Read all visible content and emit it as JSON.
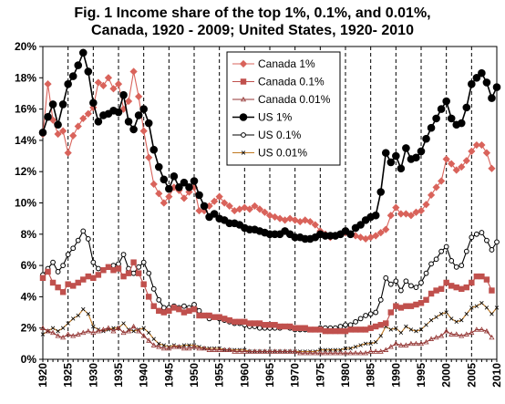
{
  "title_line1": "Fig. 1  Income share of the top 1%, 0.1%, and 0.01%,",
  "title_line2": "Canada, 1920 - 2009; United States, 1920- 2010",
  "chart_data": {
    "type": "line",
    "title": "Fig. 1  Income share of the top 1%, 0.1%, and 0.01%, Canada, 1920 - 2009; United States, 1920- 2010",
    "xlim": [
      1920,
      2010
    ],
    "ylim": [
      0,
      20
    ],
    "x_ticks": [
      1920,
      1925,
      1930,
      1935,
      1940,
      1945,
      1950,
      1955,
      1960,
      1965,
      1970,
      1975,
      1980,
      1985,
      1990,
      1995,
      2000,
      2005,
      2010
    ],
    "y_ticks": [
      0,
      2,
      4,
      6,
      8,
      10,
      12,
      14,
      16,
      18,
      20
    ],
    "y_tick_labels": [
      "0%",
      "2%",
      "4%",
      "6%",
      "8%",
      "10%",
      "12%",
      "14%",
      "16%",
      "18%",
      "20%"
    ],
    "vertical_gridlines": "dashed, every year divisible by 5",
    "legend_position": "upper-center",
    "series": [
      {
        "name": "Canada 1%",
        "color": "#D9635B",
        "marker": "diamond",
        "filled": true,
        "x": [
          1920,
          1921,
          1922,
          1923,
          1924,
          1925,
          1926,
          1927,
          1928,
          1929,
          1930,
          1931,
          1932,
          1933,
          1934,
          1935,
          1936,
          1937,
          1938,
          1939,
          1940,
          1941,
          1942,
          1943,
          1944,
          1945,
          1946,
          1947,
          1948,
          1949,
          1950,
          1951,
          1952,
          1953,
          1954,
          1955,
          1956,
          1957,
          1958,
          1959,
          1960,
          1961,
          1962,
          1963,
          1964,
          1965,
          1966,
          1967,
          1968,
          1969,
          1970,
          1971,
          1972,
          1973,
          1974,
          1975,
          1976,
          1977,
          1978,
          1979,
          1980,
          1981,
          1982,
          1983,
          1984,
          1985,
          1986,
          1987,
          1988,
          1989,
          1990,
          1991,
          1992,
          1993,
          1994,
          1995,
          1996,
          1997,
          1998,
          1999,
          2000,
          2001,
          2002,
          2003,
          2004,
          2005,
          2006,
          2007,
          2008,
          2009
        ],
        "y": [
          14.4,
          17.6,
          15.3,
          14.4,
          14.6,
          13.2,
          14.3,
          14.9,
          15.4,
          15.7,
          16.1,
          17.7,
          17.5,
          18.0,
          17.3,
          17.6,
          16.0,
          16.5,
          18.4,
          16.8,
          14.6,
          12.9,
          11.2,
          10.6,
          10.0,
          10.4,
          11.0,
          10.8,
          10.3,
          10.7,
          11.0,
          9.5,
          9.5,
          9.8,
          10.1,
          10.4,
          10.0,
          9.8,
          9.5,
          9.6,
          9.7,
          9.6,
          9.8,
          9.6,
          9.4,
          9.2,
          9.1,
          9.0,
          8.9,
          9.0,
          8.9,
          8.8,
          8.9,
          8.8,
          8.6,
          8.2,
          8.0,
          7.8,
          7.9,
          8.0,
          8.1,
          8.0,
          7.9,
          7.8,
          7.7,
          7.8,
          7.9,
          8.1,
          8.3,
          9.2,
          9.7,
          9.3,
          9.3,
          9.2,
          9.4,
          9.5,
          9.9,
          10.5,
          11.0,
          11.4,
          12.8,
          12.5,
          12.1,
          12.3,
          12.7,
          13.3,
          13.7,
          13.7,
          13.2,
          12.2
        ]
      },
      {
        "name": "Canada 0.1%",
        "color": "#C0504D",
        "marker": "square",
        "filled": true,
        "x": [
          1920,
          1921,
          1922,
          1923,
          1924,
          1925,
          1926,
          1927,
          1928,
          1929,
          1930,
          1931,
          1932,
          1933,
          1934,
          1935,
          1936,
          1937,
          1938,
          1939,
          1940,
          1941,
          1942,
          1943,
          1944,
          1945,
          1946,
          1947,
          1948,
          1949,
          1950,
          1951,
          1952,
          1953,
          1954,
          1955,
          1956,
          1957,
          1958,
          1959,
          1960,
          1961,
          1962,
          1963,
          1964,
          1965,
          1966,
          1967,
          1968,
          1969,
          1970,
          1971,
          1972,
          1973,
          1974,
          1975,
          1976,
          1977,
          1978,
          1979,
          1980,
          1981,
          1982,
          1983,
          1984,
          1985,
          1986,
          1987,
          1988,
          1989,
          1990,
          1991,
          1992,
          1993,
          1994,
          1995,
          1996,
          1997,
          1998,
          1999,
          2000,
          2001,
          2002,
          2003,
          2004,
          2005,
          2006,
          2007,
          2008,
          2009
        ],
        "y": [
          5.2,
          5.6,
          4.9,
          4.6,
          4.3,
          4.8,
          4.7,
          4.9,
          5.1,
          5.3,
          5.2,
          5.4,
          5.7,
          5.9,
          5.7,
          5.8,
          5.3,
          5.5,
          6.2,
          5.5,
          4.8,
          4.0,
          3.4,
          3.1,
          3.0,
          3.1,
          3.3,
          3.2,
          3.0,
          3.1,
          3.2,
          2.8,
          2.8,
          2.8,
          2.7,
          2.7,
          2.6,
          2.5,
          2.4,
          2.4,
          2.4,
          2.3,
          2.3,
          2.3,
          2.2,
          2.2,
          2.2,
          2.1,
          2.1,
          2.1,
          2.0,
          2.0,
          2.0,
          1.9,
          1.9,
          1.9,
          1.8,
          1.8,
          1.8,
          1.8,
          1.8,
          1.9,
          1.9,
          1.9,
          1.9,
          2.0,
          2.1,
          2.2,
          2.3,
          3.0,
          3.4,
          3.3,
          3.4,
          3.4,
          3.5,
          3.6,
          3.8,
          4.2,
          4.4,
          4.5,
          4.9,
          4.7,
          4.6,
          4.5,
          4.6,
          4.9,
          5.3,
          5.3,
          5.1,
          4.4
        ]
      },
      {
        "name": "Canada 0.01%",
        "color": "#943634",
        "marker": "triangle",
        "filled": false,
        "x": [
          1920,
          1921,
          1922,
          1923,
          1924,
          1925,
          1926,
          1927,
          1928,
          1929,
          1930,
          1931,
          1932,
          1933,
          1934,
          1935,
          1936,
          1937,
          1938,
          1939,
          1940,
          1941,
          1942,
          1943,
          1944,
          1945,
          1946,
          1947,
          1948,
          1949,
          1950,
          1951,
          1952,
          1953,
          1954,
          1955,
          1956,
          1957,
          1958,
          1959,
          1960,
          1961,
          1962,
          1963,
          1964,
          1965,
          1966,
          1967,
          1968,
          1969,
          1970,
          1971,
          1972,
          1973,
          1974,
          1975,
          1976,
          1977,
          1978,
          1979,
          1980,
          1981,
          1982,
          1983,
          1984,
          1985,
          1986,
          1987,
          1988,
          1989,
          1990,
          1991,
          1992,
          1993,
          1994,
          1995,
          1996,
          1997,
          1998,
          1999,
          2000,
          2001,
          2002,
          2003,
          2004,
          2005,
          2006,
          2007,
          2008,
          2009
        ],
        "y": [
          2.0,
          1.8,
          1.7,
          1.5,
          1.4,
          1.6,
          1.5,
          1.6,
          1.7,
          1.8,
          1.7,
          1.8,
          1.9,
          2.0,
          1.8,
          2.0,
          1.7,
          1.8,
          2.1,
          1.8,
          1.5,
          1.2,
          0.9,
          0.8,
          0.7,
          0.7,
          0.8,
          0.8,
          0.7,
          0.7,
          0.8,
          0.7,
          0.7,
          0.6,
          0.6,
          0.6,
          0.6,
          0.6,
          0.5,
          0.5,
          0.5,
          0.5,
          0.5,
          0.5,
          0.5,
          0.5,
          0.5,
          0.5,
          0.5,
          0.5,
          0.5,
          0.4,
          0.4,
          0.4,
          0.4,
          0.4,
          0.4,
          0.4,
          0.4,
          0.4,
          0.4,
          0.4,
          0.4,
          0.4,
          0.4,
          0.5,
          0.5,
          0.5,
          0.6,
          0.8,
          1.0,
          0.9,
          0.9,
          1.0,
          1.0,
          1.0,
          1.1,
          1.3,
          1.4,
          1.5,
          1.8,
          1.6,
          1.6,
          1.5,
          1.6,
          1.7,
          1.9,
          1.9,
          1.8,
          1.4
        ]
      },
      {
        "name": "US 1%",
        "color": "#000000",
        "marker": "circle",
        "filled": true,
        "x": [
          1920,
          1921,
          1922,
          1923,
          1924,
          1925,
          1926,
          1927,
          1928,
          1929,
          1930,
          1931,
          1932,
          1933,
          1934,
          1935,
          1936,
          1937,
          1938,
          1939,
          1940,
          1941,
          1942,
          1943,
          1944,
          1945,
          1946,
          1947,
          1948,
          1949,
          1950,
          1951,
          1952,
          1953,
          1954,
          1955,
          1956,
          1957,
          1958,
          1959,
          1960,
          1961,
          1962,
          1963,
          1964,
          1965,
          1966,
          1967,
          1968,
          1969,
          1970,
          1971,
          1972,
          1973,
          1974,
          1975,
          1976,
          1977,
          1978,
          1979,
          1980,
          1981,
          1982,
          1983,
          1984,
          1985,
          1986,
          1987,
          1988,
          1989,
          1990,
          1991,
          1992,
          1993,
          1994,
          1995,
          1996,
          1997,
          1998,
          1999,
          2000,
          2001,
          2002,
          2003,
          2004,
          2005,
          2006,
          2007,
          2008,
          2009,
          2010
        ],
        "y": [
          14.5,
          15.5,
          16.3,
          15.0,
          16.3,
          17.6,
          18.1,
          18.8,
          19.6,
          18.4,
          16.4,
          15.2,
          15.6,
          15.7,
          15.9,
          15.8,
          16.9,
          15.2,
          14.7,
          15.6,
          16.0,
          15.1,
          13.4,
          12.3,
          11.5,
          10.9,
          11.7,
          11.0,
          11.3,
          11.0,
          11.4,
          10.5,
          9.8,
          9.1,
          9.3,
          9.0,
          8.9,
          8.7,
          8.7,
          8.6,
          8.4,
          8.3,
          8.3,
          8.2,
          8.1,
          8.0,
          8.0,
          8.0,
          8.2,
          8.0,
          7.8,
          7.8,
          7.7,
          7.7,
          7.8,
          8.0,
          7.9,
          7.9,
          7.9,
          8.0,
          8.2,
          8.0,
          8.4,
          8.6,
          8.9,
          9.1,
          9.2,
          10.7,
          13.2,
          12.6,
          13.0,
          12.2,
          13.5,
          12.8,
          12.9,
          13.3,
          14.1,
          14.8,
          15.4,
          16.0,
          16.5,
          15.4,
          15.0,
          15.1,
          16.1,
          17.6,
          18.0,
          18.3,
          17.7,
          16.7,
          17.4
        ]
      },
      {
        "name": "US 0.1%",
        "color": "#000000",
        "marker": "circle",
        "filled": false,
        "x": [
          1920,
          1921,
          1922,
          1923,
          1924,
          1925,
          1926,
          1927,
          1928,
          1929,
          1930,
          1931,
          1932,
          1933,
          1934,
          1935,
          1936,
          1937,
          1938,
          1939,
          1940,
          1941,
          1942,
          1943,
          1944,
          1945,
          1946,
          1947,
          1948,
          1949,
          1950,
          1951,
          1952,
          1953,
          1954,
          1955,
          1956,
          1957,
          1958,
          1959,
          1960,
          1961,
          1962,
          1963,
          1964,
          1965,
          1966,
          1967,
          1968,
          1969,
          1970,
          1971,
          1972,
          1973,
          1974,
          1975,
          1976,
          1977,
          1978,
          1979,
          1980,
          1981,
          1982,
          1983,
          1984,
          1985,
          1986,
          1987,
          1988,
          1989,
          1990,
          1991,
          1992,
          1993,
          1994,
          1995,
          1996,
          1997,
          1998,
          1999,
          2000,
          2001,
          2002,
          2003,
          2004,
          2005,
          2006,
          2007,
          2008,
          2009,
          2010
        ],
        "y": [
          5.4,
          5.8,
          6.2,
          5.6,
          6.0,
          6.7,
          7.1,
          7.6,
          8.2,
          7.7,
          6.2,
          5.8,
          5.7,
          5.9,
          6.0,
          6.1,
          6.7,
          5.8,
          5.5,
          5.9,
          6.2,
          5.5,
          4.5,
          3.8,
          3.3,
          3.3,
          3.4,
          3.3,
          3.4,
          3.3,
          3.5,
          3.1,
          2.8,
          2.6,
          2.7,
          2.6,
          2.5,
          2.4,
          2.3,
          2.3,
          2.2,
          2.1,
          2.1,
          2.0,
          2.0,
          2.0,
          2.0,
          2.0,
          2.1,
          2.0,
          1.9,
          1.9,
          1.9,
          1.9,
          1.9,
          2.0,
          2.0,
          2.0,
          2.0,
          2.1,
          2.2,
          2.2,
          2.4,
          2.6,
          2.8,
          2.9,
          3.0,
          3.8,
          5.2,
          4.8,
          5.0,
          4.4,
          5.0,
          4.7,
          4.6,
          4.9,
          5.5,
          6.1,
          6.4,
          6.9,
          7.2,
          6.3,
          5.9,
          6.0,
          6.9,
          7.8,
          8.0,
          8.1,
          7.6,
          7.0,
          7.5
        ]
      },
      {
        "name": "US 0.01%",
        "color": "#C07820",
        "marker": "x",
        "filled": false,
        "x": [
          1920,
          1921,
          1922,
          1923,
          1924,
          1925,
          1926,
          1927,
          1928,
          1929,
          1930,
          1931,
          1932,
          1933,
          1934,
          1935,
          1936,
          1937,
          1938,
          1939,
          1940,
          1941,
          1942,
          1943,
          1944,
          1945,
          1946,
          1947,
          1948,
          1949,
          1950,
          1951,
          1952,
          1953,
          1954,
          1955,
          1956,
          1957,
          1958,
          1959,
          1960,
          1961,
          1962,
          1963,
          1964,
          1965,
          1966,
          1967,
          1968,
          1969,
          1970,
          1971,
          1972,
          1973,
          1974,
          1975,
          1976,
          1977,
          1978,
          1979,
          1980,
          1981,
          1982,
          1983,
          1984,
          1985,
          1986,
          1987,
          1988,
          1989,
          1990,
          1991,
          1992,
          1993,
          1994,
          1995,
          1996,
          1997,
          1998,
          1999,
          2000,
          2001,
          2002,
          2003,
          2004,
          2005,
          2006,
          2007,
          2008,
          2009,
          2010
        ],
        "y": [
          1.6,
          1.8,
          2.0,
          1.8,
          2.0,
          2.3,
          2.6,
          2.8,
          3.2,
          2.9,
          2.1,
          1.9,
          1.8,
          1.9,
          2.0,
          2.0,
          2.3,
          1.9,
          1.8,
          1.9,
          2.0,
          1.7,
          1.3,
          1.0,
          0.9,
          0.8,
          0.9,
          0.8,
          0.9,
          0.9,
          0.9,
          0.8,
          0.7,
          0.7,
          0.7,
          0.7,
          0.6,
          0.6,
          0.6,
          0.6,
          0.6,
          0.5,
          0.5,
          0.5,
          0.5,
          0.5,
          0.5,
          0.5,
          0.5,
          0.5,
          0.5,
          0.5,
          0.5,
          0.5,
          0.5,
          0.6,
          0.6,
          0.6,
          0.6,
          0.6,
          0.7,
          0.7,
          0.8,
          0.9,
          1.0,
          1.0,
          1.1,
          1.5,
          2.1,
          1.9,
          2.0,
          1.7,
          2.1,
          1.9,
          1.8,
          1.9,
          2.2,
          2.5,
          2.7,
          2.9,
          3.0,
          2.6,
          2.4,
          2.5,
          2.9,
          3.3,
          3.4,
          3.6,
          3.3,
          2.9,
          3.3
        ]
      }
    ]
  }
}
